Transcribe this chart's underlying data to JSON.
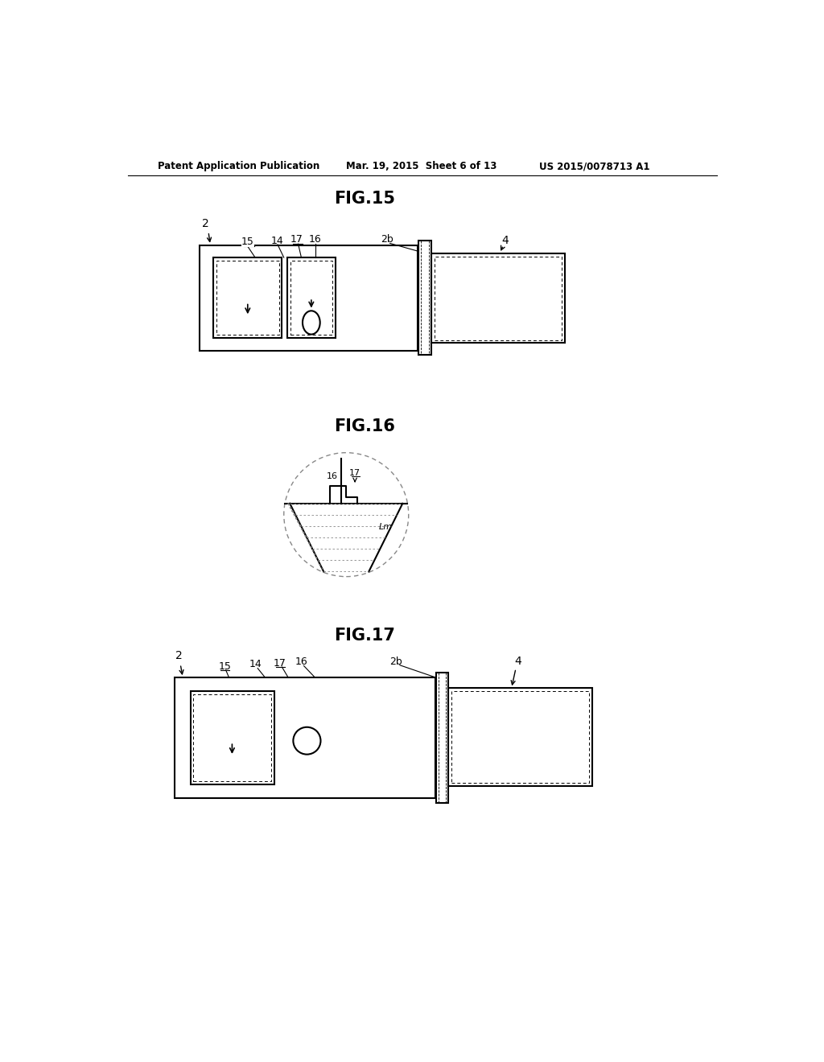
{
  "background_color": "#ffffff",
  "header_left": "Patent Application Publication",
  "header_center": "Mar. 19, 2015  Sheet 6 of 13",
  "header_right": "US 2015/0078713 A1",
  "fig15_title": "FIG.15",
  "fig16_title": "FIG.16",
  "fig17_title": "FIG.17",
  "line_color": "#000000",
  "line_width": 1.5
}
